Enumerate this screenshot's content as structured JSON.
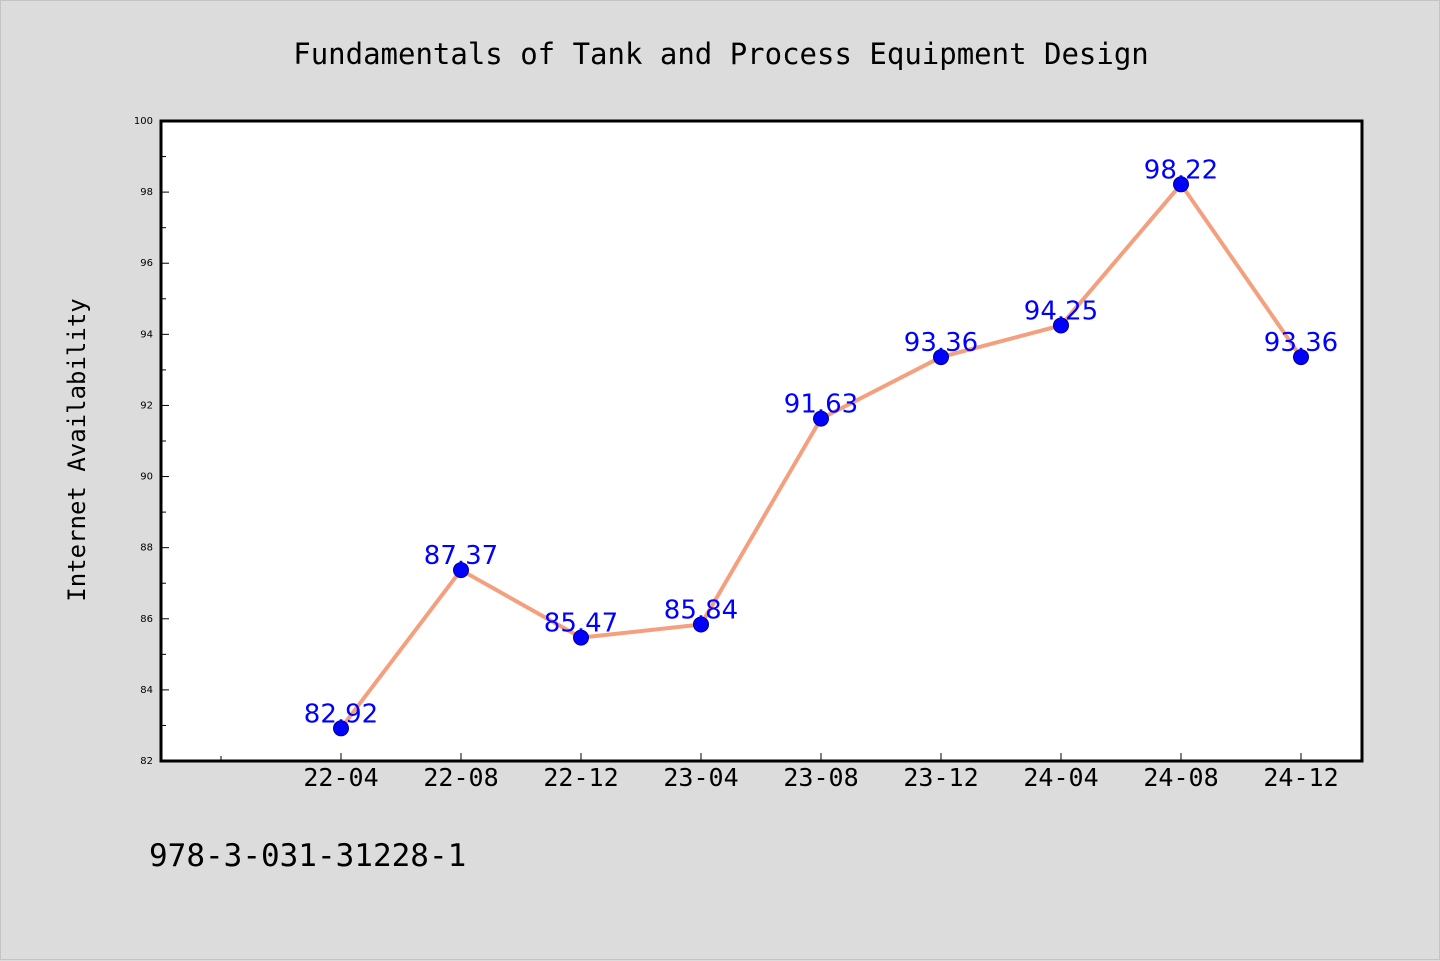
{
  "chart_data": {
    "type": "line",
    "title": "Fundamentals of Tank and Process Equipment Design",
    "ylabel": "Internet Availability",
    "xlabel": "",
    "categories": [
      "22-04",
      "22-08",
      "22-12",
      "23-04",
      "23-08",
      "23-12",
      "24-04",
      "24-08",
      "24-12"
    ],
    "series": [
      {
        "values": [
          82.92,
          87.37,
          85.47,
          85.84,
          91.63,
          93.36,
          94.25,
          98.22,
          93.36
        ],
        "labels": [
          "82.92",
          "87.37",
          "85.47",
          "85.84",
          "91.63",
          "93.36",
          "94.25",
          "98.22",
          "93.36"
        ]
      }
    ],
    "ylim": [
      82,
      100
    ],
    "yticks": [
      "82",
      "84",
      "86",
      "88",
      "90",
      "92",
      "94",
      "96",
      "98",
      "100"
    ],
    "grid": false,
    "legend": "none",
    "colors": {
      "line": "#f4a07e",
      "marker": "#0000ff",
      "label": "#0000ff",
      "background": "#dcdcdc",
      "plot_background": "#ffffff"
    }
  },
  "footer": {
    "isbn": "978-3-031-31228-1"
  }
}
